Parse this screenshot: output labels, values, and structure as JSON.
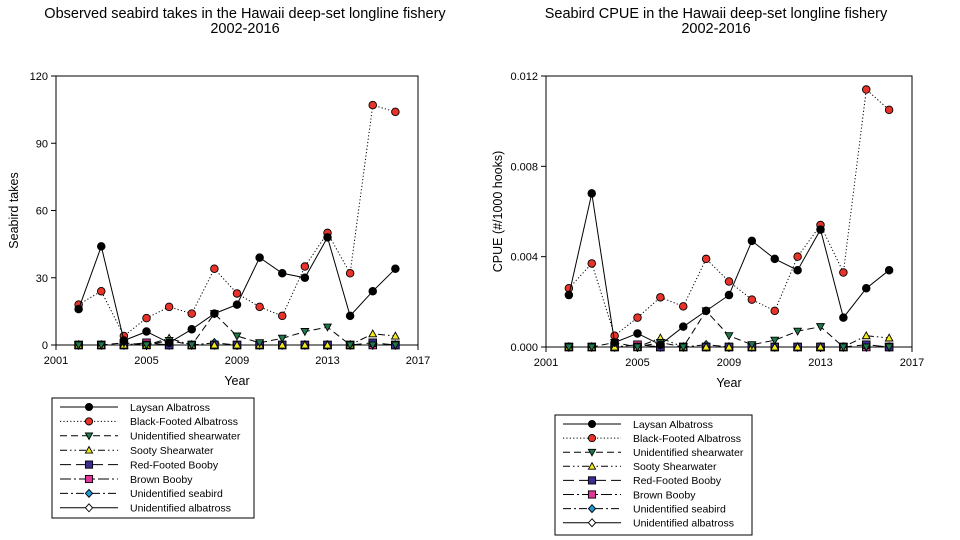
{
  "chart_data": [
    {
      "type": "line",
      "title": "Observed seabird takes in the Hawaii deep-set longline fishery",
      "subtitle": "2002-2016",
      "xlabel": "Year",
      "ylabel": "Seabird takes",
      "xlim": [
        2001,
        2017
      ],
      "ylim": [
        0,
        120
      ],
      "xticks": [
        2001,
        2005,
        2009,
        2013,
        2017
      ],
      "yticks": [
        0,
        30,
        60,
        90,
        120
      ],
      "ytick_labels": [
        "0",
        "30",
        "60",
        "90",
        "120"
      ],
      "grid": false,
      "legend_position": "bottom",
      "x": [
        2002,
        2003,
        2004,
        2005,
        2006,
        2007,
        2008,
        2009,
        2010,
        2011,
        2012,
        2013,
        2014,
        2015,
        2016
      ],
      "series": [
        {
          "name": "Laysan Albatross",
          "values": [
            16,
            44,
            2,
            6,
            1,
            7,
            14,
            18,
            39,
            32,
            30,
            48,
            13,
            24,
            34
          ]
        },
        {
          "name": "Black-Footed Albatross",
          "values": [
            18,
            24,
            4,
            12,
            17,
            14,
            34,
            23,
            17,
            13,
            35,
            50,
            32,
            107,
            104
          ]
        },
        {
          "name": "Unidentified shearwater",
          "values": [
            0,
            0,
            1,
            0,
            2,
            0,
            14,
            4,
            1,
            3,
            6,
            8,
            0,
            0,
            0
          ]
        },
        {
          "name": "Sooty Shearwater",
          "values": [
            0,
            0,
            0,
            0,
            3,
            0,
            0,
            0,
            0,
            0,
            0,
            0,
            0,
            5,
            4
          ]
        },
        {
          "name": "Red-Footed Booby",
          "values": [
            0,
            0,
            0,
            0,
            0,
            0,
            0,
            0,
            0,
            0,
            0,
            0,
            0,
            1,
            0
          ]
        },
        {
          "name": "Brown Booby",
          "values": [
            0,
            0,
            0,
            1,
            0,
            0,
            0,
            0,
            0,
            0,
            0,
            0,
            0,
            0,
            0
          ]
        },
        {
          "name": "Unidentified seabird",
          "values": [
            0,
            0,
            0,
            0,
            0,
            0,
            1,
            0,
            0,
            0,
            0,
            0,
            0,
            0,
            0
          ]
        },
        {
          "name": "Unidentified albatross",
          "values": [
            0,
            0,
            0,
            0,
            0,
            0,
            0,
            0,
            0,
            0,
            0,
            0,
            0,
            0,
            0
          ]
        }
      ]
    },
    {
      "type": "line",
      "title": "Seabird CPUE in the Hawaii deep-set longline fishery",
      "subtitle": "2002-2016",
      "xlabel": "Year",
      "ylabel": "CPUE (#/1000 hooks)",
      "xlim": [
        2001,
        2017
      ],
      "ylim": [
        0,
        0.012
      ],
      "xticks": [
        2001,
        2005,
        2009,
        2013,
        2017
      ],
      "yticks": [
        0,
        0.004,
        0.008,
        0.012
      ],
      "ytick_labels": [
        "0.000",
        "0.004",
        "0.008",
        "0.012"
      ],
      "grid": false,
      "legend_position": "bottom",
      "x": [
        2002,
        2003,
        2004,
        2005,
        2006,
        2007,
        2008,
        2009,
        2010,
        2011,
        2012,
        2013,
        2014,
        2015,
        2016
      ],
      "series": [
        {
          "name": "Laysan Albatross",
          "values": [
            0.0023,
            0.0068,
            0.0002,
            0.0006,
            0.0001,
            0.0009,
            0.0016,
            0.0023,
            0.0047,
            0.0039,
            0.0034,
            0.0052,
            0.0013,
            0.0026,
            0.0034
          ]
        },
        {
          "name": "Black-Footed Albatross",
          "values": [
            0.0026,
            0.0037,
            0.0005,
            0.0013,
            0.0022,
            0.0018,
            0.0039,
            0.0029,
            0.0021,
            0.0016,
            0.004,
            0.0054,
            0.0033,
            0.0114,
            0.0105
          ]
        },
        {
          "name": "Unidentified shearwater",
          "values": [
            0,
            0,
            0.0002,
            0,
            0.0002,
            0,
            0.0016,
            0.0005,
            0.0001,
            0.0003,
            0.0007,
            0.0009,
            0,
            0,
            0
          ]
        },
        {
          "name": "Sooty Shearwater",
          "values": [
            0,
            0,
            0,
            0,
            0.0004,
            0,
            0,
            0,
            0,
            0,
            0,
            0,
            0,
            0.0005,
            0.0004
          ]
        },
        {
          "name": "Red-Footed Booby",
          "values": [
            0,
            0,
            0,
            0,
            0,
            0,
            0,
            0,
            0,
            0,
            0,
            0,
            0,
            0.0001,
            0
          ]
        },
        {
          "name": "Brown Booby",
          "values": [
            0,
            0,
            0,
            0.0001,
            0,
            0,
            0,
            0,
            0,
            0,
            0,
            0,
            0,
            0,
            0
          ]
        },
        {
          "name": "Unidentified seabird",
          "values": [
            0,
            0,
            0,
            0,
            0,
            0,
            0.0001,
            0,
            0,
            0,
            0,
            0,
            0,
            0,
            0
          ]
        },
        {
          "name": "Unidentified albatross",
          "values": [
            0,
            0,
            0,
            0,
            0,
            0,
            0,
            0,
            0,
            0,
            0,
            0,
            0,
            0,
            0
          ]
        }
      ]
    }
  ],
  "series_styles": [
    {
      "marker": "circle",
      "fill": "#000000",
      "dash": "none"
    },
    {
      "marker": "circle",
      "fill": "#e8332a",
      "dash": "dotted"
    },
    {
      "marker": "triangle-down",
      "fill": "#1f7a4a",
      "dash": "dash"
    },
    {
      "marker": "triangle-up",
      "fill": "#f2ea1d",
      "dash": "dash-dot-dot"
    },
    {
      "marker": "square",
      "fill": "#3d2b8f",
      "dash": "long-dash"
    },
    {
      "marker": "square",
      "fill": "#e0379a",
      "dash": "long-dash-dot"
    },
    {
      "marker": "diamond",
      "fill": "#1e9ad6",
      "dash": "dash-dot"
    },
    {
      "marker": "diamond",
      "fill": "#ffffff",
      "dash": "none"
    }
  ]
}
